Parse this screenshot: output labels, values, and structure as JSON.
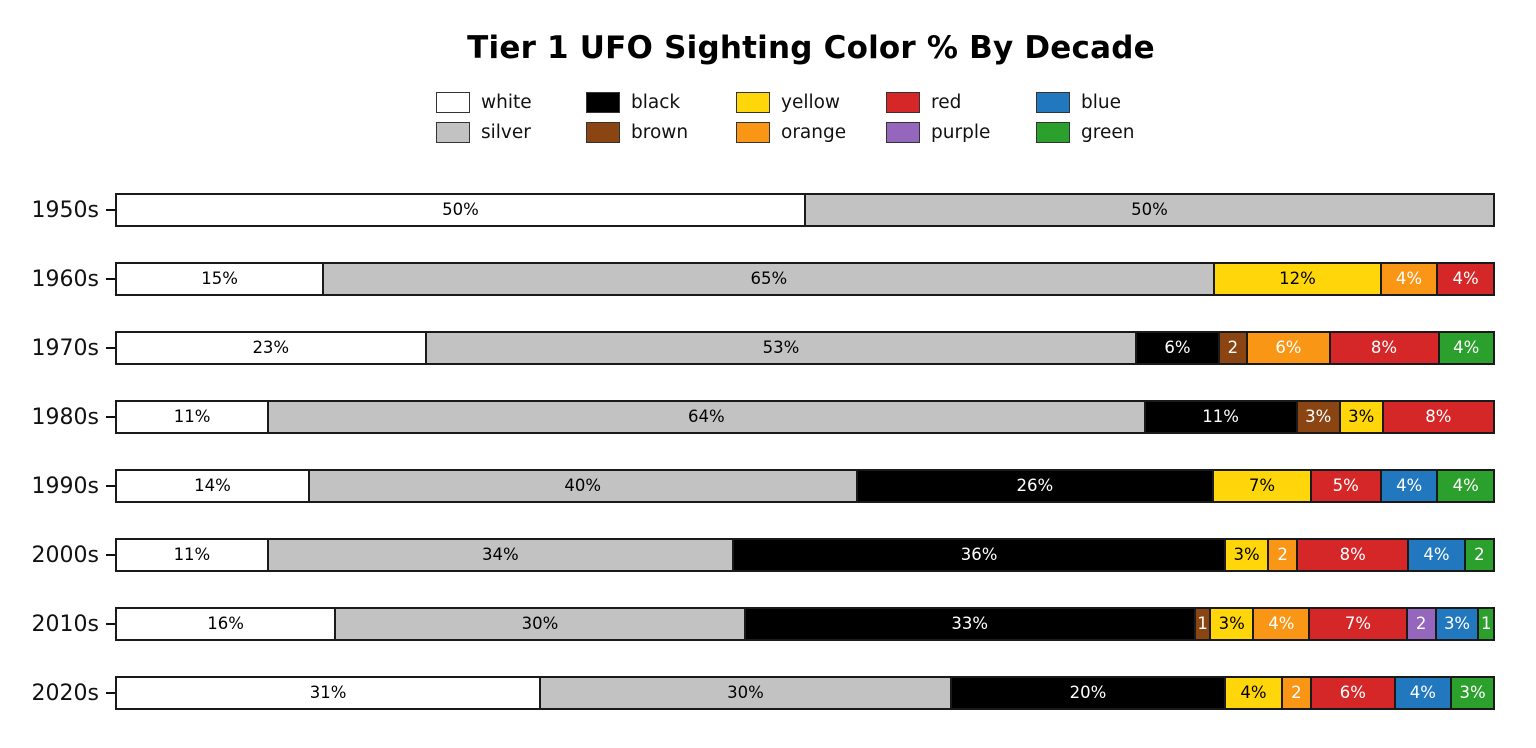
{
  "title": "Tier 1 UFO Sighting Color % By Decade",
  "colors": {
    "white": "#FFFFFF",
    "silver": "#C2C2C2",
    "black": "#000000",
    "brown": "#8B4513",
    "yellow": "#FFD60A",
    "orange": "#FA9615",
    "red": "#D62728",
    "purple": "#9467BD",
    "blue": "#2278BE",
    "green": "#2CA02C"
  },
  "label_text_dark": "#000000",
  "label_text_light": "#FFFFFF",
  "dark_text_segments": [
    "white",
    "silver",
    "yellow"
  ],
  "legend": {
    "items": [
      "white",
      "black",
      "yellow",
      "red",
      "blue",
      "silver",
      "brown",
      "orange",
      "purple",
      "green"
    ]
  },
  "rows": [
    {
      "label": "1950s",
      "segments": [
        {
          "color": "white",
          "value": 50,
          "label": "50%"
        },
        {
          "color": "silver",
          "value": 50,
          "label": "50%"
        }
      ]
    },
    {
      "label": "1960s",
      "segments": [
        {
          "color": "white",
          "value": 15,
          "label": "15%"
        },
        {
          "color": "silver",
          "value": 65,
          "label": "65%"
        },
        {
          "color": "yellow",
          "value": 12,
          "label": "12%"
        },
        {
          "color": "orange",
          "value": 4,
          "label": "4%"
        },
        {
          "color": "red",
          "value": 4,
          "label": "4%"
        }
      ]
    },
    {
      "label": "1970s",
      "segments": [
        {
          "color": "white",
          "value": 23,
          "label": "23%"
        },
        {
          "color": "silver",
          "value": 53,
          "label": "53%"
        },
        {
          "color": "black",
          "value": 6,
          "label": "6%"
        },
        {
          "color": "brown",
          "value": 2,
          "label": "2"
        },
        {
          "color": "orange",
          "value": 6,
          "label": "6%"
        },
        {
          "color": "red",
          "value": 8,
          "label": "8%"
        },
        {
          "color": "green",
          "value": 4,
          "label": "4%"
        }
      ]
    },
    {
      "label": "1980s",
      "segments": [
        {
          "color": "white",
          "value": 11,
          "label": "11%"
        },
        {
          "color": "silver",
          "value": 64,
          "label": "64%"
        },
        {
          "color": "black",
          "value": 11,
          "label": "11%"
        },
        {
          "color": "brown",
          "value": 3,
          "label": "3%"
        },
        {
          "color": "yellow",
          "value": 3,
          "label": "3%"
        },
        {
          "color": "red",
          "value": 8,
          "label": "8%"
        }
      ]
    },
    {
      "label": "1990s",
      "segments": [
        {
          "color": "white",
          "value": 14,
          "label": "14%"
        },
        {
          "color": "silver",
          "value": 40,
          "label": "40%"
        },
        {
          "color": "black",
          "value": 26,
          "label": "26%"
        },
        {
          "color": "yellow",
          "value": 7,
          "label": "7%"
        },
        {
          "color": "red",
          "value": 5,
          "label": "5%"
        },
        {
          "color": "blue",
          "value": 4,
          "label": "4%"
        },
        {
          "color": "green",
          "value": 4,
          "label": "4%"
        }
      ]
    },
    {
      "label": "2000s",
      "segments": [
        {
          "color": "white",
          "value": 11,
          "label": "11%"
        },
        {
          "color": "silver",
          "value": 34,
          "label": "34%"
        },
        {
          "color": "black",
          "value": 36,
          "label": "36%"
        },
        {
          "color": "yellow",
          "value": 3,
          "label": "3%"
        },
        {
          "color": "orange",
          "value": 2,
          "label": "2"
        },
        {
          "color": "red",
          "value": 8,
          "label": "8%"
        },
        {
          "color": "blue",
          "value": 4,
          "label": "4%"
        },
        {
          "color": "green",
          "value": 2,
          "label": "2"
        }
      ]
    },
    {
      "label": "2010s",
      "segments": [
        {
          "color": "white",
          "value": 16,
          "label": "16%"
        },
        {
          "color": "silver",
          "value": 30,
          "label": "30%"
        },
        {
          "color": "black",
          "value": 33,
          "label": "33%"
        },
        {
          "color": "brown",
          "value": 1,
          "label": "1"
        },
        {
          "color": "yellow",
          "value": 3,
          "label": "3%"
        },
        {
          "color": "orange",
          "value": 4,
          "label": "4%"
        },
        {
          "color": "red",
          "value": 7,
          "label": "7%"
        },
        {
          "color": "purple",
          "value": 2,
          "label": "2"
        },
        {
          "color": "blue",
          "value": 3,
          "label": "3%"
        },
        {
          "color": "green",
          "value": 1,
          "label": "1"
        }
      ]
    },
    {
      "label": "2020s",
      "segments": [
        {
          "color": "white",
          "value": 31,
          "label": "31%"
        },
        {
          "color": "silver",
          "value": 30,
          "label": "30%"
        },
        {
          "color": "black",
          "value": 20,
          "label": "20%"
        },
        {
          "color": "yellow",
          "value": 4,
          "label": "4%"
        },
        {
          "color": "orange",
          "value": 2,
          "label": "2"
        },
        {
          "color": "red",
          "value": 6,
          "label": "6%"
        },
        {
          "color": "blue",
          "value": 4,
          "label": "4%"
        },
        {
          "color": "green",
          "value": 3,
          "label": "3%"
        }
      ]
    }
  ],
  "chart_data": {
    "type": "bar",
    "orientation": "horizontal_stacked",
    "title": "Tier 1 UFO Sighting Color % By Decade",
    "unit": "%",
    "categories": [
      "1950s",
      "1960s",
      "1970s",
      "1980s",
      "1990s",
      "2000s",
      "2010s",
      "2020s"
    ],
    "series": [
      {
        "name": "white",
        "values": [
          50,
          15,
          23,
          11,
          14,
          11,
          16,
          31
        ]
      },
      {
        "name": "silver",
        "values": [
          50,
          65,
          53,
          64,
          40,
          34,
          30,
          30
        ]
      },
      {
        "name": "black",
        "values": [
          0,
          0,
          6,
          11,
          26,
          36,
          33,
          20
        ]
      },
      {
        "name": "brown",
        "values": [
          0,
          0,
          2,
          3,
          0,
          0,
          1,
          0
        ]
      },
      {
        "name": "yellow",
        "values": [
          0,
          12,
          0,
          3,
          7,
          3,
          3,
          4
        ]
      },
      {
        "name": "orange",
        "values": [
          0,
          4,
          6,
          0,
          0,
          2,
          4,
          2
        ]
      },
      {
        "name": "red",
        "values": [
          0,
          4,
          8,
          8,
          5,
          8,
          7,
          6
        ]
      },
      {
        "name": "purple",
        "values": [
          0,
          0,
          0,
          0,
          0,
          0,
          2,
          0
        ]
      },
      {
        "name": "blue",
        "values": [
          0,
          0,
          0,
          0,
          4,
          4,
          3,
          4
        ]
      },
      {
        "name": "green",
        "values": [
          0,
          0,
          4,
          0,
          4,
          2,
          1,
          3
        ]
      }
    ],
    "legend_position": "top-center, 5 columns x 2 rows",
    "xlabel": "",
    "ylabel": "",
    "xlim": [
      0,
      100
    ],
    "grid": false,
    "bar_labels": "segment percentage shown inside each segment; values under 3 shown without % sign"
  }
}
